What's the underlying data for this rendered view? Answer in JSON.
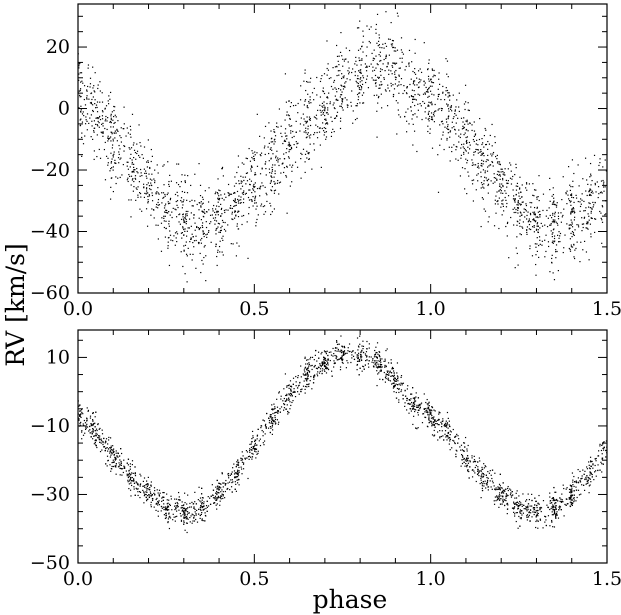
{
  "figure": {
    "ylabel": "RV [km/s]",
    "xlabel": "phase"
  },
  "chart_data": [
    {
      "type": "scatter",
      "panel": "top",
      "xlim": [
        0.0,
        1.5
      ],
      "ylim": [
        -60,
        34
      ],
      "xticks": [
        0.0,
        0.5,
        1.0,
        1.5
      ],
      "xtick_labels": [
        "0.0",
        "0.5",
        "1.0",
        "1.5"
      ],
      "yticks": [
        20,
        0,
        -20,
        -40,
        -60
      ],
      "ytick_labels": [
        "20",
        "0",
        "−20",
        "−40",
        "−60"
      ],
      "xlabel": "",
      "ylabel": "RV [km/s]",
      "grid": false,
      "curve": {
        "description_free": true,
        "phase": [
          0.0,
          0.05,
          0.1,
          0.15,
          0.2,
          0.25,
          0.3,
          0.35,
          0.4,
          0.45,
          0.5,
          0.55,
          0.6,
          0.65,
          0.7,
          0.75,
          0.8,
          0.85,
          0.9,
          0.95,
          1.0
        ],
        "rv": [
          4,
          -3,
          -10,
          -18,
          -26,
          -32,
          -36,
          -38,
          -36,
          -32,
          -26,
          -19,
          -12,
          -5,
          2,
          8,
          12,
          14,
          12,
          6,
          4
        ]
      },
      "scatter_sd": 7.0,
      "n_points": 2600
    },
    {
      "type": "scatter",
      "panel": "bottom",
      "xlim": [
        0.0,
        1.5
      ],
      "ylim": [
        -50,
        18
      ],
      "xticks": [
        0.0,
        0.5,
        1.0,
        1.5
      ],
      "xtick_labels": [
        "0.0",
        "0.5",
        "1.0",
        "1.5"
      ],
      "yticks": [
        10,
        -10,
        -30,
        -50
      ],
      "ytick_labels": [
        "10",
        "−10",
        "−30",
        "−50"
      ],
      "xlabel": "phase",
      "ylabel": "RV [km/s]",
      "grid": false,
      "curve": {
        "phase": [
          0.0,
          0.05,
          0.1,
          0.15,
          0.2,
          0.25,
          0.3,
          0.35,
          0.4,
          0.45,
          0.5,
          0.55,
          0.6,
          0.65,
          0.7,
          0.75,
          0.8,
          0.85,
          0.9,
          0.95,
          1.0
        ],
        "rv": [
          -7,
          -12,
          -19,
          -25,
          -30,
          -34,
          -35,
          -34,
          -30,
          -24,
          -16,
          -8,
          -1,
          5,
          9,
          11,
          11,
          9,
          3,
          -4,
          -7
        ]
      },
      "scatter_sd": 2.2,
      "n_points": 2600
    }
  ]
}
